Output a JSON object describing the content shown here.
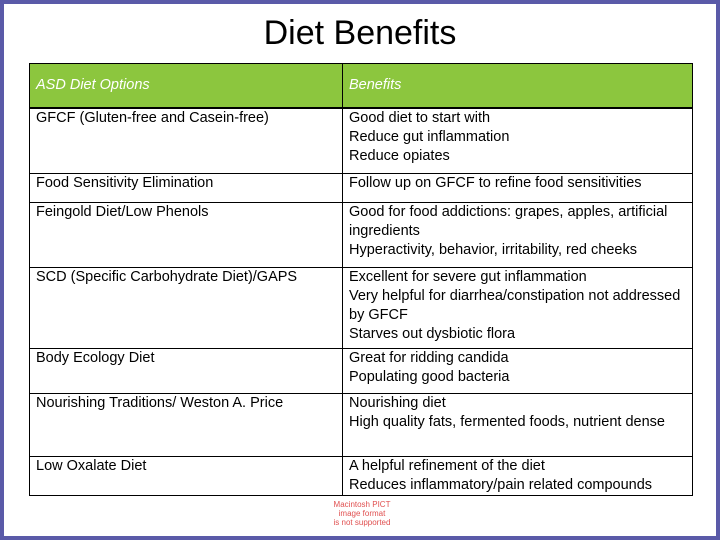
{
  "title": "Diet Benefits",
  "table": {
    "headers": [
      "ASD Diet Options",
      "Benefits"
    ],
    "rows": [
      {
        "option": "GFCF (Gluten-free and Casein-free)",
        "benefits": [
          "Good diet to start with",
          "Reduce gut inflammation",
          "Reduce opiates"
        ]
      },
      {
        "option": "Food Sensitivity Elimination",
        "benefits": [
          "Follow up on GFCF to refine food sensitivities"
        ]
      },
      {
        "option": "Feingold Diet/Low Phenols",
        "benefits": [
          "Good for food addictions: grapes, apples, artificial ingredients",
          "Hyperactivity, behavior, irritability, red cheeks"
        ]
      },
      {
        "option": "SCD (Specific Carbohydrate Diet)/GAPS",
        "benefits": [
          "Excellent for severe gut inflammation",
          "Very helpful for diarrhea/constipation not addressed by GFCF",
          "Starves out dysbiotic flora"
        ]
      },
      {
        "option": "Body Ecology Diet",
        "benefits": [
          "Great for ridding candida",
          "Populating good bacteria"
        ]
      },
      {
        "option": "Nourishing Traditions/ Weston A. Price",
        "benefits": [
          "Nourishing diet",
          "High quality fats, fermented foods, nutrient dense"
        ]
      },
      {
        "option": "Low Oxalate Diet",
        "benefits": [
          "A helpful refinement of the diet",
          "Reduces inflammatory/pain related compounds"
        ]
      }
    ]
  },
  "placeholder_image": {
    "lines": [
      "Macintosh PICT",
      "image format",
      "is not supported"
    ]
  },
  "colors": {
    "header_bg": "#8cc63e",
    "frame": "#5a5aa8"
  }
}
